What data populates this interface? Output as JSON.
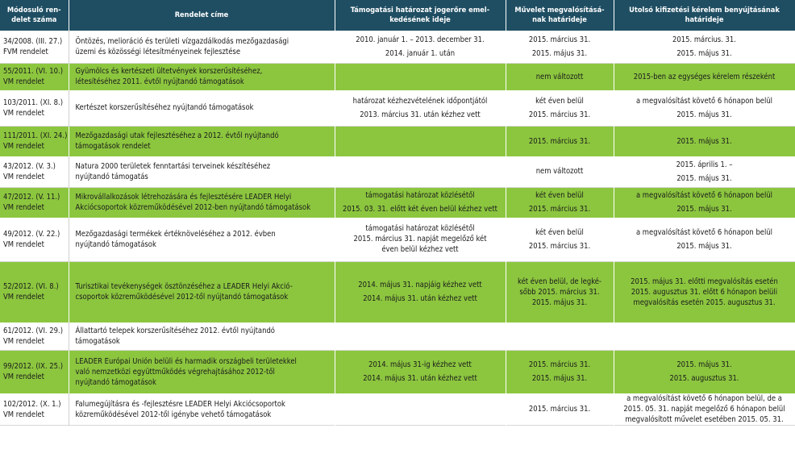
{
  "headers": [
    "Módosuló ren-delet száma",
    "Rendelet címe",
    "Támogatási határozat jogerőre emel-kedésének ideje",
    "Művelet megvalósításá-nak határideje",
    "Utolsó kifizetési kérelem benyújtásának határideje"
  ],
  "rows": [
    {
      "number": [
        "34/2008. (III. 27.)",
        "FVM rendelet"
      ],
      "title": [
        "Öntözés, melioráció és területi vízgazdálkodás mezőgazdasági",
        "üzemi és közösségi létesítményeinek fejlesztése"
      ],
      "decision": [
        "2010. január 1. – 2013. december 31.",
        "2014. január 1. után"
      ],
      "deadline": [
        "2015. március 31.",
        "2015. május 31."
      ],
      "last_claim": [
        "2015. március. 31.",
        "2015. május 31."
      ]
    },
    {
      "number": [
        "55/2011. (VI. 10.)",
        "VM rendelet"
      ],
      "title": [
        "Gyümölcs és kertészeti ültetvények korszerűsítéséhez,",
        "létesítéséhez 2011. évtől nyújtandó támogatások"
      ],
      "decision": [],
      "deadline": [
        "nem változott"
      ],
      "last_claim": [
        "2015-ben az egységes kérelem részeként"
      ]
    },
    {
      "number": [
        "103/2011. (XI. 8.)",
        "VM rendelet"
      ],
      "title": [
        "Kertészet korszerűsítéséhez nyújtandó támogatások"
      ],
      "decision": [
        "határozat kézhezvételének időpontjától",
        "2013. március 31. után kézhez vett"
      ],
      "deadline": [
        "két éven belül",
        "2015. március 31."
      ],
      "last_claim": [
        "a megvalósítást követő 6 hónapon belül",
        "2015. május 31."
      ]
    },
    {
      "number": [
        "111/2011. (XI. 24.)",
        "VM rendelet"
      ],
      "title": [
        "Mezőgazdasági utak fejlesztéséhez a 2012. évtől nyújtandó",
        "támogatások rendelet"
      ],
      "decision": [],
      "deadline": [
        "2015. március 31."
      ],
      "last_claim": [
        "2015. május 31."
      ]
    },
    {
      "number": [
        "43/2012. (V. 3.)",
        "VM rendelet"
      ],
      "title": [
        "Natura 2000 területek fenntartási terveinek készítéséhez",
        "nyújtandó támogatás"
      ],
      "decision": [],
      "deadline": [
        "nem változott"
      ],
      "last_claim": [
        "2015. április 1. –",
        "2015. május 31."
      ]
    },
    {
      "number": [
        "47/2012. (V. 11.)",
        "VM rendelet"
      ],
      "title": [
        "Mikrovállalkozások létrehozására és fejlesztésére LEADER Helyi",
        "Akciócsoportok közreműködésével 2012-ben nyújtandó támogatások"
      ],
      "decision": [
        "támogatási határozat közlésétől",
        "2015. 03. 31. előtt két éven belül kézhez vett"
      ],
      "deadline": [
        "két éven belül",
        "2015. március 31."
      ],
      "last_claim": [
        "a megvalósítást követő 6 hónapon belül",
        "2015. május 31."
      ]
    },
    {
      "number": [
        "49/2012. (V. 22.)",
        "VM rendelet"
      ],
      "title": [
        "Mezőgazdasági termékek értéknöveléséhez a 2012. évben",
        "nyújtandó támogatások"
      ],
      "decision": [
        "támogatási határozat közlésétől",
        "2015. március 31. napját megelőző két",
        "éven belül kézhez vett"
      ],
      "deadline": [
        "két éven belül",
        "2015. március 31."
      ],
      "last_claim": [
        "a megvalósítást követő 6 hónapon belül",
        "2015. május 31."
      ]
    },
    {
      "number": [
        "52/2012. (VI. 8.)",
        "VM rendelet"
      ],
      "title": [
        "Turisztikai tevékenységek ösztönzéséhez a LEADER Helyi Akció-",
        "csoportok közreműködésével 2012-től nyújtandó támogatások"
      ],
      "decision": [
        "2014. május 31. napjáig kézhez vett",
        "2014. május 31. után kézhez vett"
      ],
      "deadline": [
        "két éven belül, de legké-",
        "sőbb 2015. március 31.",
        "2015. május 31."
      ],
      "last_claim": [
        "2015. május 31. előtti megvalósítás esetén",
        "2015. augusztus 31. előtt 6 hónapon belüli",
        "megvalósítás esetén 2015. augusztus 31."
      ]
    },
    {
      "number": [
        "61/2012. (VI. 29.)",
        "VM rendelet"
      ],
      "title": [
        "Állattartó telepek korszerűsítéséhez 2012. évtől nyújtandó",
        "támogatások"
      ],
      "decision": [],
      "deadline": [],
      "last_claim": []
    },
    {
      "number": [
        "99/2012. (IX. 25.)",
        "VM rendelet"
      ],
      "title": [
        "LEADER Európai Unión belüli és harmadik országbeli területekkel",
        "való nemzetközi együttműködés végrehajtásához 2012-től",
        "nyújtandó támogatások"
      ],
      "decision": [
        "2014. május 31-ig kézhez vett",
        "2014. május 31. után kézhez vett"
      ],
      "deadline": [
        "2015. március 31.",
        "2015. május 31."
      ],
      "last_claim": [
        "2015. május 31.",
        "2015. augusztus 31."
      ]
    },
    {
      "number": [
        "102/2012. (X. 1.)",
        "VM rendelet"
      ],
      "title": [
        "Falumegújításra és -fejlesztésre LEADER Helyi Akciócsoportok",
        "közreműködésével 2012-től igénybe vehető támogatások"
      ],
      "decision": [],
      "deadline": [
        "2015. március 31."
      ],
      "last_claim": [
        "a megvalósítást követő 6 hónapon belül, de a",
        "2015. 05. 31. napját megelőző 6 hónapon belül",
        "megvalósított művelet esetében 2015. 05. 31."
      ]
    }
  ],
  "colors": {
    "header_bg": "#1f4e63",
    "row_green": "#8cc63f",
    "row_white": "#ffffff"
  }
}
